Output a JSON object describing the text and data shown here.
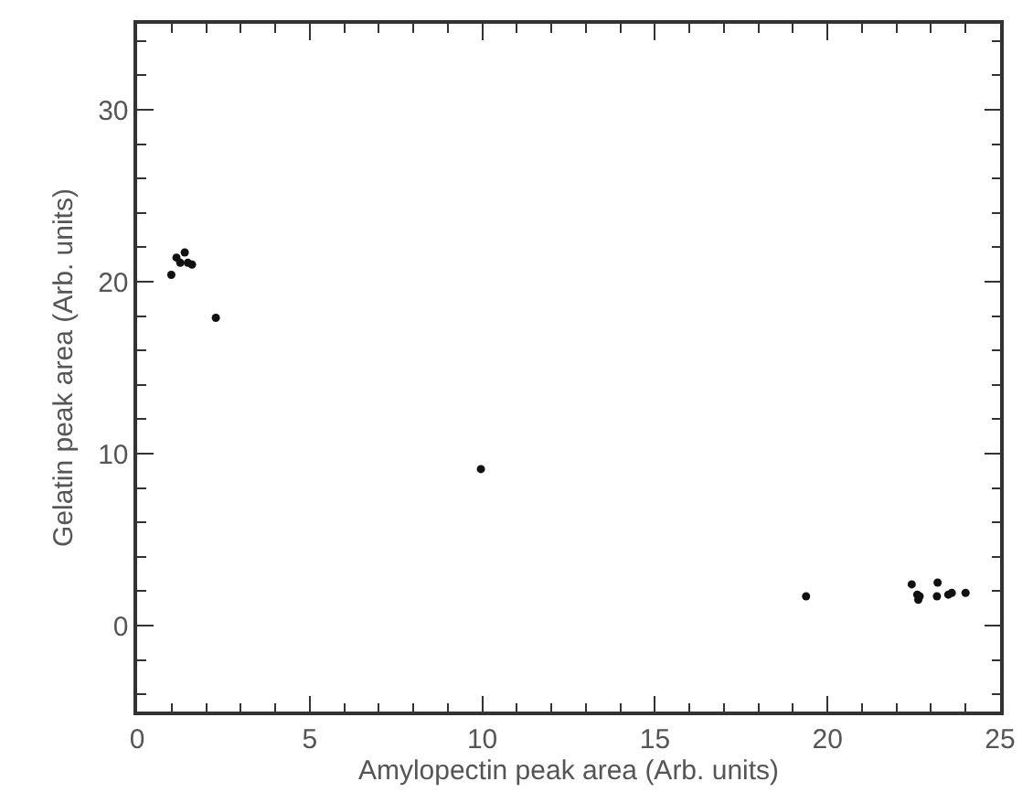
{
  "chart_data": {
    "type": "scatter",
    "xlabel": "Amylopectin peak area (Arb. units)",
    "ylabel": "Gelatin peak area (Arb. units)",
    "x": [
      0.99,
      1.14,
      1.38,
      1.25,
      1.47,
      1.59,
      2.28,
      9.96,
      19.38,
      22.44,
      22.6,
      22.63,
      22.67,
      23.19,
      23.17,
      23.5,
      23.6,
      24.0
    ],
    "series": [
      {
        "color": "#111111",
        "values": [
          20.4,
          21.4,
          21.7,
          21.1,
          21.1,
          21.0,
          17.9,
          9.1,
          1.7,
          2.4,
          1.8,
          1.5,
          1.7,
          2.5,
          1.7,
          1.8,
          1.9,
          1.9
        ]
      }
    ],
    "xlim": [
      0,
      25
    ],
    "xticks": [
      0,
      5,
      10,
      15,
      20,
      25
    ],
    "ylim": [
      -5,
      35
    ],
    "yticks": [
      0,
      10,
      20,
      30
    ],
    "grid": false,
    "marker": "circle"
  }
}
